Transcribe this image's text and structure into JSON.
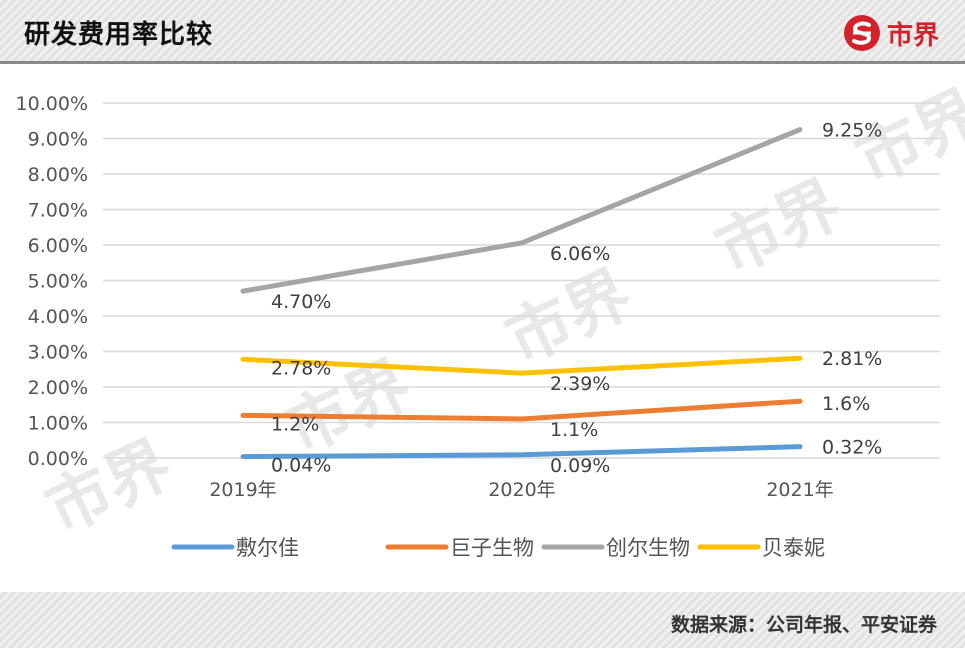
{
  "header": {
    "title": "研发费用率比较",
    "brand": "市界"
  },
  "footer": {
    "source": "数据来源：公司年报、平安证券"
  },
  "colors": {
    "accent": "#d2232a"
  },
  "chart_data": {
    "type": "line",
    "title": "研发费用率比较",
    "categories": [
      "2019年",
      "2020年",
      "2021年"
    ],
    "y_ticks": [
      "0.00%",
      "1.00%",
      "2.00%",
      "3.00%",
      "4.00%",
      "5.00%",
      "6.00%",
      "7.00%",
      "8.00%",
      "9.00%",
      "10.00%"
    ],
    "ylim": [
      0,
      10
    ],
    "grid": true,
    "legend": "bottom",
    "series": [
      {
        "name": "敷尔佳",
        "color": "#5b9bd5",
        "values": [
          0.04,
          0.09,
          0.32
        ],
        "labels": [
          "0.04%",
          "0.09%",
          "0.32%"
        ]
      },
      {
        "name": "巨子生物",
        "color": "#ed7d31",
        "values": [
          1.2,
          1.1,
          1.6
        ],
        "labels": [
          "1.2%",
          "1.1%",
          "1.6%"
        ]
      },
      {
        "name": "创尔生物",
        "color": "#a5a5a5",
        "values": [
          4.7,
          6.06,
          9.25
        ],
        "labels": [
          "4.70%",
          "6.06%",
          "9.25%"
        ]
      },
      {
        "name": "贝泰妮",
        "color": "#ffc000",
        "values": [
          2.78,
          2.39,
          2.81
        ],
        "labels": [
          "2.78%",
          "2.39%",
          "2.81%"
        ]
      }
    ],
    "watermark": "市界"
  }
}
